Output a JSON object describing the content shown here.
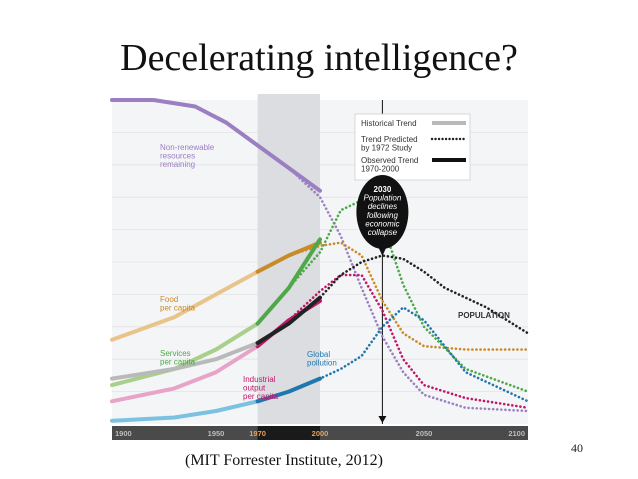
{
  "slide": {
    "title": "Decelerating intelligence?",
    "citation": "(MIT Forrester Institute, 2012)",
    "page_number": "40"
  },
  "colors": {
    "nonrenewable": "#9b7fc2",
    "food": "#e9c48a",
    "food_observed": "#c98a2a",
    "services": "#a8d08a",
    "services_observed": "#4ea84a",
    "industrial": "#e8a3c9",
    "industrial_observed": "#c0176b",
    "pollution": "#7dc1e2",
    "pollution_observed": "#1f77b0",
    "population": "#222222",
    "population_historical": "#b9b9b9",
    "band": "#dcdde0",
    "axis_bar": "#4a4a4a",
    "axis_highlight": "#1a1a1a",
    "tick_text": "#bdbdbd",
    "tick_highlight": "#e8a05a"
  },
  "chart_data": {
    "type": "line",
    "xlabel": "",
    "ylabel": "",
    "xlim": [
      1900,
      2100
    ],
    "ylim": [
      0,
      100
    ],
    "grid": true,
    "shaded_period": [
      1970,
      2000
    ],
    "marker_year": 2030,
    "x_ticks": [
      "1900",
      "1950",
      "1970",
      "2000",
      "2050",
      "2100"
    ],
    "legend": {
      "position": "top-right",
      "entries": [
        {
          "label": "Historical Trend",
          "style": "historical"
        },
        {
          "label": "Trend Predicted by 1972 Study",
          "style": "predicted"
        },
        {
          "label": "Observed Trend 1970-2000",
          "style": "observed"
        }
      ]
    },
    "annotation": "2030 Population declines following economic collapse",
    "series": [
      {
        "name": "Non-renewable resources remaining",
        "key": "nonrenewable",
        "historical": [
          [
            1900,
            100
          ],
          [
            1920,
            100
          ],
          [
            1940,
            98
          ],
          [
            1955,
            93
          ],
          [
            1970,
            86
          ]
        ],
        "predicted": [
          [
            1970,
            86
          ],
          [
            1985,
            79
          ],
          [
            2000,
            70
          ],
          [
            2010,
            58
          ],
          [
            2020,
            42
          ],
          [
            2030,
            27
          ],
          [
            2040,
            16
          ],
          [
            2050,
            9
          ],
          [
            2070,
            5
          ],
          [
            2100,
            4
          ]
        ],
        "observed": [
          [
            1970,
            86
          ],
          [
            1985,
            79
          ],
          [
            2000,
            72
          ]
        ]
      },
      {
        "name": "Food per capita",
        "key": "food",
        "historical": [
          [
            1900,
            26
          ],
          [
            1930,
            33
          ],
          [
            1950,
            40
          ],
          [
            1970,
            47
          ]
        ],
        "predicted": [
          [
            1970,
            47
          ],
          [
            1985,
            52
          ],
          [
            2000,
            55
          ],
          [
            2010,
            56
          ],
          [
            2020,
            52
          ],
          [
            2030,
            38
          ],
          [
            2040,
            28
          ],
          [
            2050,
            24
          ],
          [
            2070,
            23
          ],
          [
            2100,
            23
          ]
        ],
        "observed": [
          [
            1970,
            47
          ],
          [
            1985,
            52
          ],
          [
            2000,
            56
          ]
        ]
      },
      {
        "name": "Services per capita",
        "key": "services",
        "historical": [
          [
            1900,
            12
          ],
          [
            1930,
            17
          ],
          [
            1950,
            23
          ],
          [
            1970,
            31
          ]
        ],
        "predicted": [
          [
            1970,
            31
          ],
          [
            1985,
            42
          ],
          [
            2000,
            53
          ],
          [
            2010,
            66
          ],
          [
            2020,
            69
          ],
          [
            2030,
            62
          ],
          [
            2040,
            43
          ],
          [
            2050,
            30
          ],
          [
            2070,
            17
          ],
          [
            2100,
            10
          ]
        ],
        "observed": [
          [
            1970,
            31
          ],
          [
            1985,
            42
          ],
          [
            2000,
            57
          ]
        ]
      },
      {
        "name": "Industrial output per capita",
        "key": "industrial",
        "historical": [
          [
            1900,
            7
          ],
          [
            1930,
            11
          ],
          [
            1950,
            16
          ],
          [
            1970,
            24
          ]
        ],
        "predicted": [
          [
            1970,
            24
          ],
          [
            1985,
            32
          ],
          [
            2000,
            41
          ],
          [
            2010,
            46
          ],
          [
            2020,
            46
          ],
          [
            2030,
            35
          ],
          [
            2040,
            20
          ],
          [
            2050,
            12
          ],
          [
            2070,
            8
          ],
          [
            2100,
            5
          ]
        ],
        "observed": [
          [
            1970,
            24
          ],
          [
            1985,
            32
          ],
          [
            2000,
            38
          ]
        ]
      },
      {
        "name": "Global pollution",
        "key": "pollution",
        "historical": [
          [
            1900,
            1
          ],
          [
            1930,
            2
          ],
          [
            1950,
            4
          ],
          [
            1970,
            7
          ]
        ],
        "predicted": [
          [
            1970,
            7
          ],
          [
            1985,
            10
          ],
          [
            2000,
            14
          ],
          [
            2010,
            17
          ],
          [
            2020,
            21
          ],
          [
            2030,
            30
          ],
          [
            2040,
            36
          ],
          [
            2050,
            32
          ],
          [
            2070,
            16
          ],
          [
            2100,
            7
          ]
        ],
        "observed": [
          [
            1970,
            7
          ],
          [
            1985,
            10
          ],
          [
            2000,
            14
          ]
        ]
      },
      {
        "name": "POPULATION",
        "key": "population",
        "historical": [
          [
            1900,
            14
          ],
          [
            1930,
            17
          ],
          [
            1950,
            20
          ],
          [
            1970,
            25
          ]
        ],
        "predicted": [
          [
            1970,
            25
          ],
          [
            1985,
            31
          ],
          [
            2000,
            39
          ],
          [
            2010,
            46
          ],
          [
            2020,
            50
          ],
          [
            2030,
            52
          ],
          [
            2040,
            51
          ],
          [
            2050,
            47
          ],
          [
            2060,
            42
          ],
          [
            2080,
            36
          ],
          [
            2100,
            28
          ]
        ],
        "observed": [
          [
            1970,
            25
          ],
          [
            1985,
            31
          ],
          [
            2000,
            39
          ]
        ]
      }
    ],
    "series_labels": {
      "nonrenewable": [
        "Non-renewable",
        "resources",
        "remaining"
      ],
      "food": [
        "Food",
        "per capita"
      ],
      "services": [
        "Services",
        "per capita"
      ],
      "industrial": [
        "Industrial",
        "output",
        "per capita"
      ],
      "pollution": [
        "Global",
        "pollution"
      ],
      "population": [
        "POPULATION"
      ]
    }
  }
}
